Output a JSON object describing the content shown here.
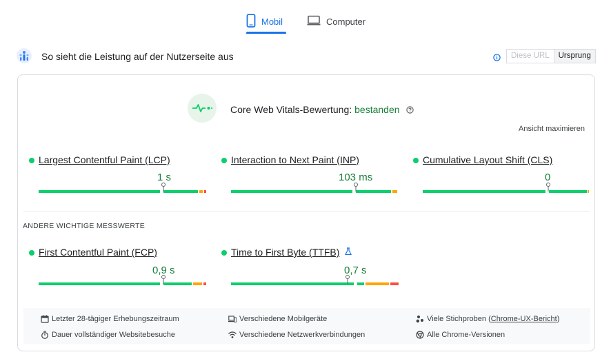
{
  "tabs": {
    "mobile_label": "Mobil",
    "desktop_label": "Computer"
  },
  "header": {
    "title": "So sieht die Leistung auf der Nutzerseite aus",
    "url_button": "Diese URL",
    "origin_button": "Ursprung"
  },
  "cwv": {
    "label": "Core Web Vitals-Bewertung:",
    "status": "bestanden",
    "expand_link": "Ansicht maximieren"
  },
  "metrics": {
    "lcp": {
      "name": "Largest Contentful Paint (LCP)",
      "value": "1 s",
      "status": "good"
    },
    "inp": {
      "name": "Interaction to Next Paint (INP)",
      "value": "103 ms",
      "status": "good"
    },
    "cls": {
      "name": "Cumulative Layout Shift (CLS)",
      "value": "0",
      "status": "good"
    },
    "fcp": {
      "name": "First Contentful Paint (FCP)",
      "value": "0,9 s",
      "status": "good"
    },
    "ttfb": {
      "name": "Time to First Byte (TTFB)",
      "value": "0,7 s",
      "status": "good",
      "experimental": true
    }
  },
  "other_title": "ANDERE WICHTIGE MESSWERTE",
  "footer": {
    "period": "Letzter 28-tägiger Erhebungszeitraum",
    "devices": "Verschiedene Mobilgeräte",
    "samples_prefix": "Viele Stichproben (",
    "samples_link": "Chrome-UX-Bericht",
    "samples_suffix": ")",
    "duration": "Dauer vollständiger Websitebesuche",
    "network": "Verschiedene Netzwerkverbindungen",
    "chrome": "Alle Chrome-Versionen"
  },
  "colors": {
    "accent": "#1a73e8",
    "good": "#0cce6b",
    "good_text": "#188038",
    "average": "#ffa400",
    "poor": "#ff4e42"
  },
  "icons": {
    "mobile_tab": "smartphone-icon",
    "desktop_tab": "laptop-icon",
    "crux": "crux-logo-icon",
    "info": "info-icon",
    "cwv": "pulse-icon",
    "help": "help-icon",
    "experimental": "flask-icon",
    "calendar": "calendar-icon",
    "devices": "devices-icon",
    "samples": "samples-icon",
    "timer": "timer-icon",
    "wifi": "wifi-icon",
    "chrome": "chrome-icon"
  }
}
